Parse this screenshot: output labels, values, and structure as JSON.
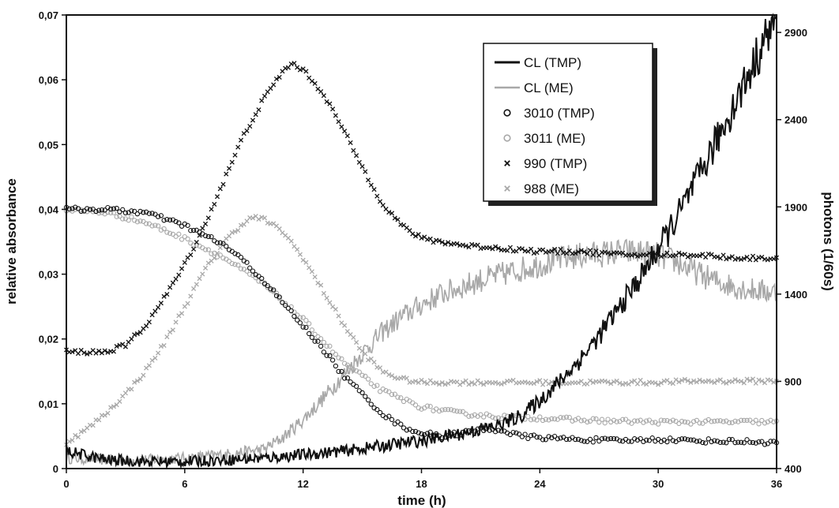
{
  "chart_data": {
    "type": "line",
    "title": "",
    "xlabel": "time (h)",
    "ylabel_left": "relative absorbance",
    "ylabel_right": "photons (1/60s)",
    "xlim": [
      0,
      36
    ],
    "ylim_left": [
      0,
      0.07
    ],
    "ylim_right": [
      400,
      3000
    ],
    "x_ticks": [
      "0",
      "6",
      "12",
      "18",
      "24",
      "30",
      "36"
    ],
    "x_tick_values": [
      0,
      6,
      12,
      18,
      24,
      30,
      36
    ],
    "y_left_ticks": [
      "0",
      "0,01",
      "0,02",
      "0,03",
      "0,04",
      "0,05",
      "0,06",
      "0,07"
    ],
    "y_left_tick_values": [
      0,
      0.01,
      0.02,
      0.03,
      0.04,
      0.05,
      0.06,
      0.07
    ],
    "y_right_ticks": [
      "400",
      "900",
      "1400",
      "1900",
      "2400",
      "2900"
    ],
    "y_right_tick_values": [
      400,
      900,
      1400,
      1900,
      2400,
      2900
    ],
    "grid": false,
    "legend_position": "top-right",
    "colors": {
      "TMP": "#111111",
      "ME": "#a8a8a8"
    },
    "series": [
      {
        "name": "CL (TMP)",
        "axis": "right",
        "marker": "line",
        "color": "#111111",
        "x": [
          0,
          2,
          4,
          6,
          8,
          10,
          12,
          14,
          16,
          18,
          20,
          22,
          23,
          24,
          25,
          26,
          27,
          28,
          29,
          30,
          31,
          32,
          33,
          34,
          35,
          36
        ],
        "y": [
          500,
          450,
          440,
          440,
          450,
          460,
          480,
          500,
          530,
          560,
          600,
          650,
          700,
          790,
          900,
          1020,
          1160,
          1320,
          1480,
          1660,
          1850,
          2060,
          2290,
          2520,
          2760,
          3000
        ]
      },
      {
        "name": "CL (ME)",
        "axis": "right",
        "marker": "line",
        "color": "#a8a8a8",
        "x": [
          0,
          2,
          4,
          6,
          8,
          10,
          11,
          12,
          13,
          14,
          15,
          16,
          17,
          18,
          19,
          20,
          21,
          22,
          23,
          24,
          25,
          26,
          27,
          28,
          29,
          30,
          31,
          32,
          33,
          34,
          35,
          36
        ],
        "y": [
          460,
          450,
          450,
          460,
          480,
          510,
          580,
          680,
          800,
          930,
          1060,
          1180,
          1270,
          1340,
          1400,
          1440,
          1480,
          1510,
          1540,
          1570,
          1600,
          1620,
          1630,
          1640,
          1640,
          1620,
          1580,
          1520,
          1470,
          1440,
          1420,
          1410
        ]
      },
      {
        "name": "3010 (TMP)",
        "axis": "left",
        "marker": "circle",
        "color": "#111111",
        "x": [
          0,
          2,
          4,
          6,
          7,
          8,
          9,
          10,
          11,
          12,
          13,
          14,
          15,
          16,
          17,
          18,
          19,
          20,
          21,
          22,
          23,
          24,
          26,
          28,
          30,
          32,
          34,
          36
        ],
        "y": [
          0.04,
          0.04,
          0.0395,
          0.0375,
          0.036,
          0.0345,
          0.032,
          0.029,
          0.0255,
          0.022,
          0.0185,
          0.0145,
          0.0115,
          0.0085,
          0.0065,
          0.0055,
          0.005,
          0.0055,
          0.006,
          0.006,
          0.005,
          0.0048,
          0.0045,
          0.0043,
          0.0045,
          0.0043,
          0.0042,
          0.004
        ]
      },
      {
        "name": "3011 (ME)",
        "axis": "left",
        "marker": "circle",
        "color": "#a8a8a8",
        "x": [
          0,
          2,
          4,
          6,
          8,
          10,
          12,
          14,
          16,
          18,
          20,
          22,
          24,
          26,
          28,
          30,
          32,
          34,
          36
        ],
        "y": [
          0.04,
          0.0395,
          0.038,
          0.0355,
          0.0325,
          0.0285,
          0.023,
          0.0165,
          0.012,
          0.0095,
          0.0085,
          0.008,
          0.0078,
          0.0075,
          0.0073,
          0.0072,
          0.0072,
          0.0072,
          0.0072
        ]
      },
      {
        "name": "990 (TMP)",
        "axis": "left",
        "marker": "cross",
        "color": "#111111",
        "x": [
          0,
          1,
          2,
          3,
          4,
          5,
          6,
          7,
          8,
          9,
          10,
          11,
          11.5,
          12,
          13,
          14,
          15,
          16,
          17,
          18,
          19,
          20,
          22,
          24,
          26,
          28,
          30,
          32,
          34,
          36
        ],
        "y": [
          0.018,
          0.018,
          0.018,
          0.019,
          0.022,
          0.0265,
          0.0315,
          0.0375,
          0.0445,
          0.0515,
          0.057,
          0.0615,
          0.0625,
          0.0615,
          0.058,
          0.0525,
          0.0465,
          0.041,
          0.0375,
          0.0355,
          0.035,
          0.0345,
          0.034,
          0.0335,
          0.0335,
          0.033,
          0.033,
          0.033,
          0.0325,
          0.0325
        ]
      },
      {
        "name": "988 (ME)",
        "axis": "left",
        "marker": "cross",
        "color": "#a8a8a8",
        "x": [
          0,
          1,
          2,
          3,
          4,
          5,
          6,
          7,
          8,
          9,
          9.5,
          10,
          11,
          12,
          13,
          14,
          15,
          16,
          17,
          18,
          20,
          22,
          24,
          26,
          28,
          30,
          32,
          34,
          36
        ],
        "y": [
          0.004,
          0.006,
          0.0085,
          0.0115,
          0.015,
          0.0195,
          0.025,
          0.0305,
          0.035,
          0.038,
          0.0388,
          0.0385,
          0.0365,
          0.0325,
          0.0275,
          0.0225,
          0.018,
          0.015,
          0.0138,
          0.0133,
          0.0133,
          0.0133,
          0.0133,
          0.0133,
          0.0133,
          0.0133,
          0.0135,
          0.0135,
          0.0135
        ]
      }
    ]
  }
}
